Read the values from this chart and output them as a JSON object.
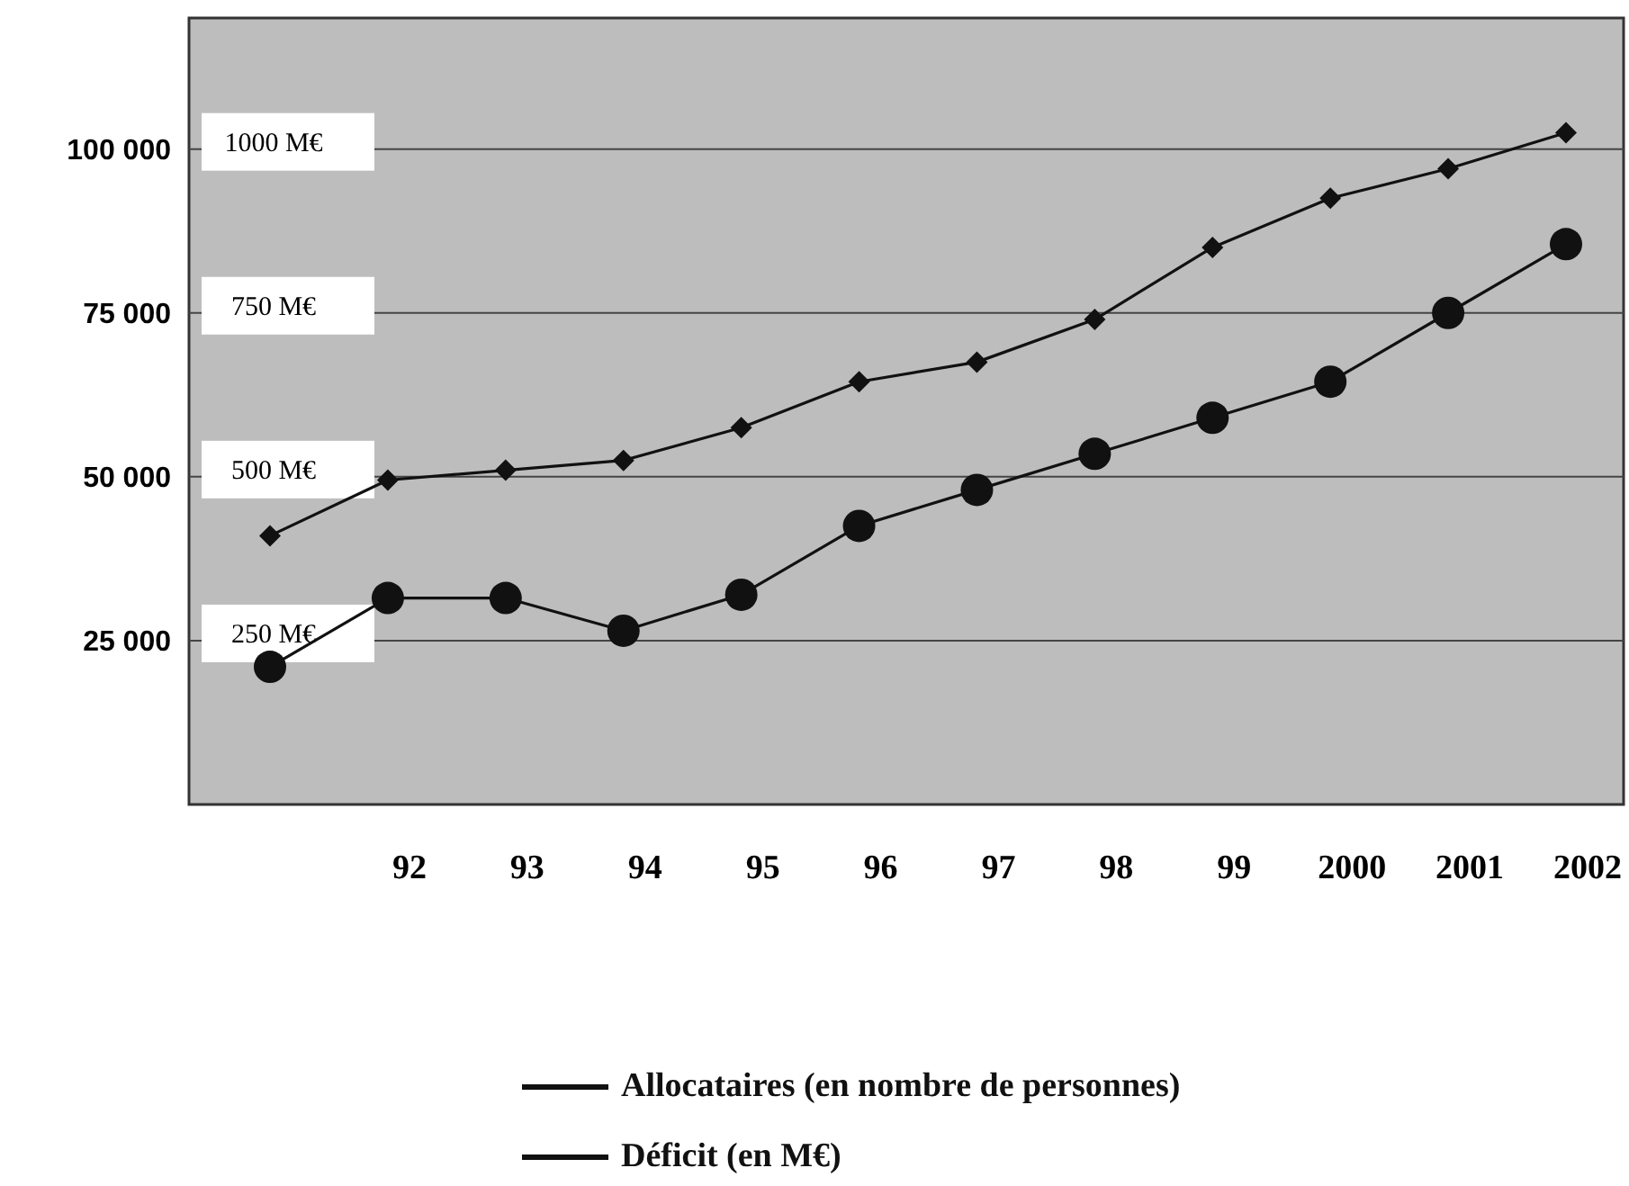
{
  "chart_data": {
    "type": "line",
    "categories": [
      null,
      "92",
      "93",
      "94",
      "95",
      "96",
      "97",
      "98",
      "99",
      "2000",
      "2001",
      "2002"
    ],
    "series": [
      {
        "name": "Allocataires (en nombre de personnes)",
        "color": "#111111",
        "marker": "diamond",
        "values": [
          41000,
          49500,
          51000,
          52500,
          57500,
          64500,
          67500,
          74000,
          85000,
          92500,
          97000,
          102500
        ]
      },
      {
        "name": "Déficit (en M€)",
        "color": "#111111",
        "marker": "circle",
        "axis": "y2",
        "values": [
          210,
          315,
          315,
          265,
          320,
          425,
          480,
          535,
          590,
          645,
          750,
          855
        ]
      }
    ],
    "ylim": [
      0,
      120000
    ],
    "yticks": [
      {
        "value": 25000,
        "label": "25 000"
      },
      {
        "value": 50000,
        "label": "50 000"
      },
      {
        "value": 75000,
        "label": "75 000"
      },
      {
        "value": 100000,
        "label": "100 000"
      }
    ],
    "y2lim": [
      0,
      1200
    ],
    "y2ticks": [
      {
        "value": 250,
        "label": "250 M€"
      },
      {
        "value": 500,
        "label": "500 M€"
      },
      {
        "value": 750,
        "label": "750 M€"
      },
      {
        "value": 1000,
        "label": "1000 M€"
      }
    ],
    "grid": "y",
    "legend": "bottom",
    "line_style": "solid"
  }
}
